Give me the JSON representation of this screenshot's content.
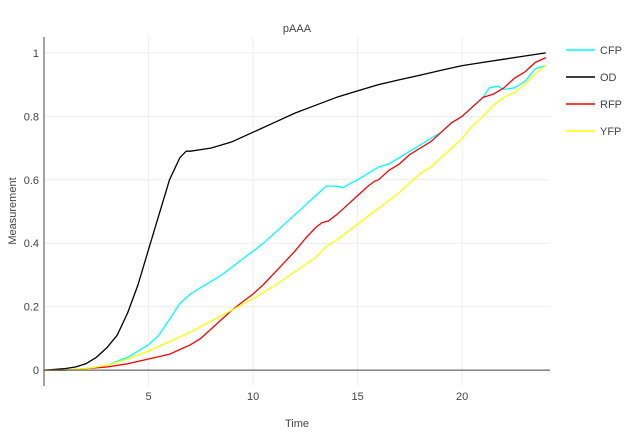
{
  "chart_data": {
    "type": "line",
    "title": "pAAA",
    "xlabel": "Time",
    "ylabel": "Measurement",
    "xlim": [
      0,
      24.2
    ],
    "ylim": [
      -0.05,
      1.05
    ],
    "x_ticks": [
      5,
      10,
      15,
      20
    ],
    "y_ticks": [
      0,
      0.2,
      0.4,
      0.6,
      0.8,
      1
    ],
    "x_tick_labels": [
      "5",
      "10",
      "15",
      "20"
    ],
    "y_tick_labels": [
      "0",
      "0.2",
      "0.4",
      "0.6",
      "0.8",
      "1"
    ],
    "grid": true,
    "legend_position": "right",
    "series": [
      {
        "name": "CFP",
        "color": "#00ffff",
        "x": [
          0,
          1,
          2,
          3,
          4,
          5,
          5.5,
          6,
          6.5,
          7,
          7.5,
          8,
          8.5,
          9,
          9.5,
          10,
          10.5,
          11,
          11.5,
          12,
          12.5,
          13,
          13.5,
          14,
          14.3,
          14.7,
          15,
          15.5,
          16,
          16.5,
          17,
          17.5,
          18,
          18.5,
          19,
          19.5,
          20,
          20.5,
          21,
          21.3,
          21.7,
          22,
          22.5,
          23,
          23.5,
          24
        ],
        "y": [
          0,
          0,
          0.005,
          0.015,
          0.04,
          0.08,
          0.11,
          0.16,
          0.21,
          0.24,
          0.26,
          0.28,
          0.3,
          0.325,
          0.35,
          0.375,
          0.4,
          0.43,
          0.46,
          0.49,
          0.52,
          0.55,
          0.58,
          0.58,
          0.575,
          0.59,
          0.6,
          0.62,
          0.64,
          0.65,
          0.67,
          0.69,
          0.71,
          0.73,
          0.75,
          0.78,
          0.8,
          0.83,
          0.86,
          0.89,
          0.895,
          0.885,
          0.89,
          0.91,
          0.95,
          0.96
        ]
      },
      {
        "name": "OD",
        "color": "#000000",
        "x": [
          0,
          1,
          1.5,
          2,
          2.5,
          3,
          3.5,
          4,
          4.5,
          5,
          5.5,
          6,
          6.5,
          6.8,
          7,
          7.5,
          8,
          9,
          10,
          11,
          12,
          13,
          14,
          15,
          16,
          17,
          18,
          19,
          20,
          21,
          22,
          23,
          24
        ],
        "y": [
          0,
          0.005,
          0.01,
          0.02,
          0.04,
          0.07,
          0.11,
          0.18,
          0.27,
          0.38,
          0.49,
          0.6,
          0.67,
          0.69,
          0.69,
          0.695,
          0.7,
          0.72,
          0.75,
          0.78,
          0.81,
          0.835,
          0.86,
          0.88,
          0.9,
          0.915,
          0.93,
          0.945,
          0.96,
          0.97,
          0.98,
          0.99,
          1.0
        ]
      },
      {
        "name": "RFP",
        "color": "#ff0000",
        "x": [
          0,
          1,
          2,
          3,
          4,
          5,
          6,
          6.5,
          7,
          7.5,
          8,
          8.5,
          9,
          9.5,
          10,
          10.5,
          11,
          11.5,
          12,
          12.5,
          13,
          13.3,
          13.6,
          14,
          14.5,
          15,
          15.5,
          15.8,
          16,
          16.5,
          17,
          17.5,
          18,
          18.5,
          19,
          19.5,
          20,
          20.5,
          21,
          21.5,
          22,
          22.5,
          23,
          23.5,
          24
        ],
        "y": [
          0,
          0,
          0.005,
          0.01,
          0.02,
          0.035,
          0.05,
          0.065,
          0.08,
          0.1,
          0.13,
          0.16,
          0.19,
          0.215,
          0.24,
          0.27,
          0.305,
          0.34,
          0.375,
          0.415,
          0.45,
          0.465,
          0.47,
          0.49,
          0.52,
          0.55,
          0.58,
          0.595,
          0.6,
          0.63,
          0.65,
          0.68,
          0.7,
          0.72,
          0.75,
          0.78,
          0.8,
          0.83,
          0.86,
          0.87,
          0.89,
          0.92,
          0.94,
          0.97,
          0.985
        ]
      },
      {
        "name": "YFP",
        "color": "#ffff00",
        "x": [
          0,
          1,
          2,
          3,
          4,
          5,
          6,
          7,
          8,
          9,
          10,
          11,
          12,
          13,
          13.5,
          14,
          15,
          16,
          17,
          17.5,
          18,
          18.5,
          19,
          19.5,
          20,
          20.5,
          21,
          21.5,
          22,
          22.5,
          23,
          23.5,
          24
        ],
        "y": [
          0,
          0,
          0.005,
          0.015,
          0.035,
          0.06,
          0.09,
          0.12,
          0.155,
          0.19,
          0.225,
          0.265,
          0.31,
          0.355,
          0.39,
          0.41,
          0.46,
          0.51,
          0.56,
          0.59,
          0.62,
          0.64,
          0.67,
          0.7,
          0.73,
          0.77,
          0.8,
          0.835,
          0.86,
          0.875,
          0.9,
          0.935,
          0.96
        ]
      }
    ]
  }
}
